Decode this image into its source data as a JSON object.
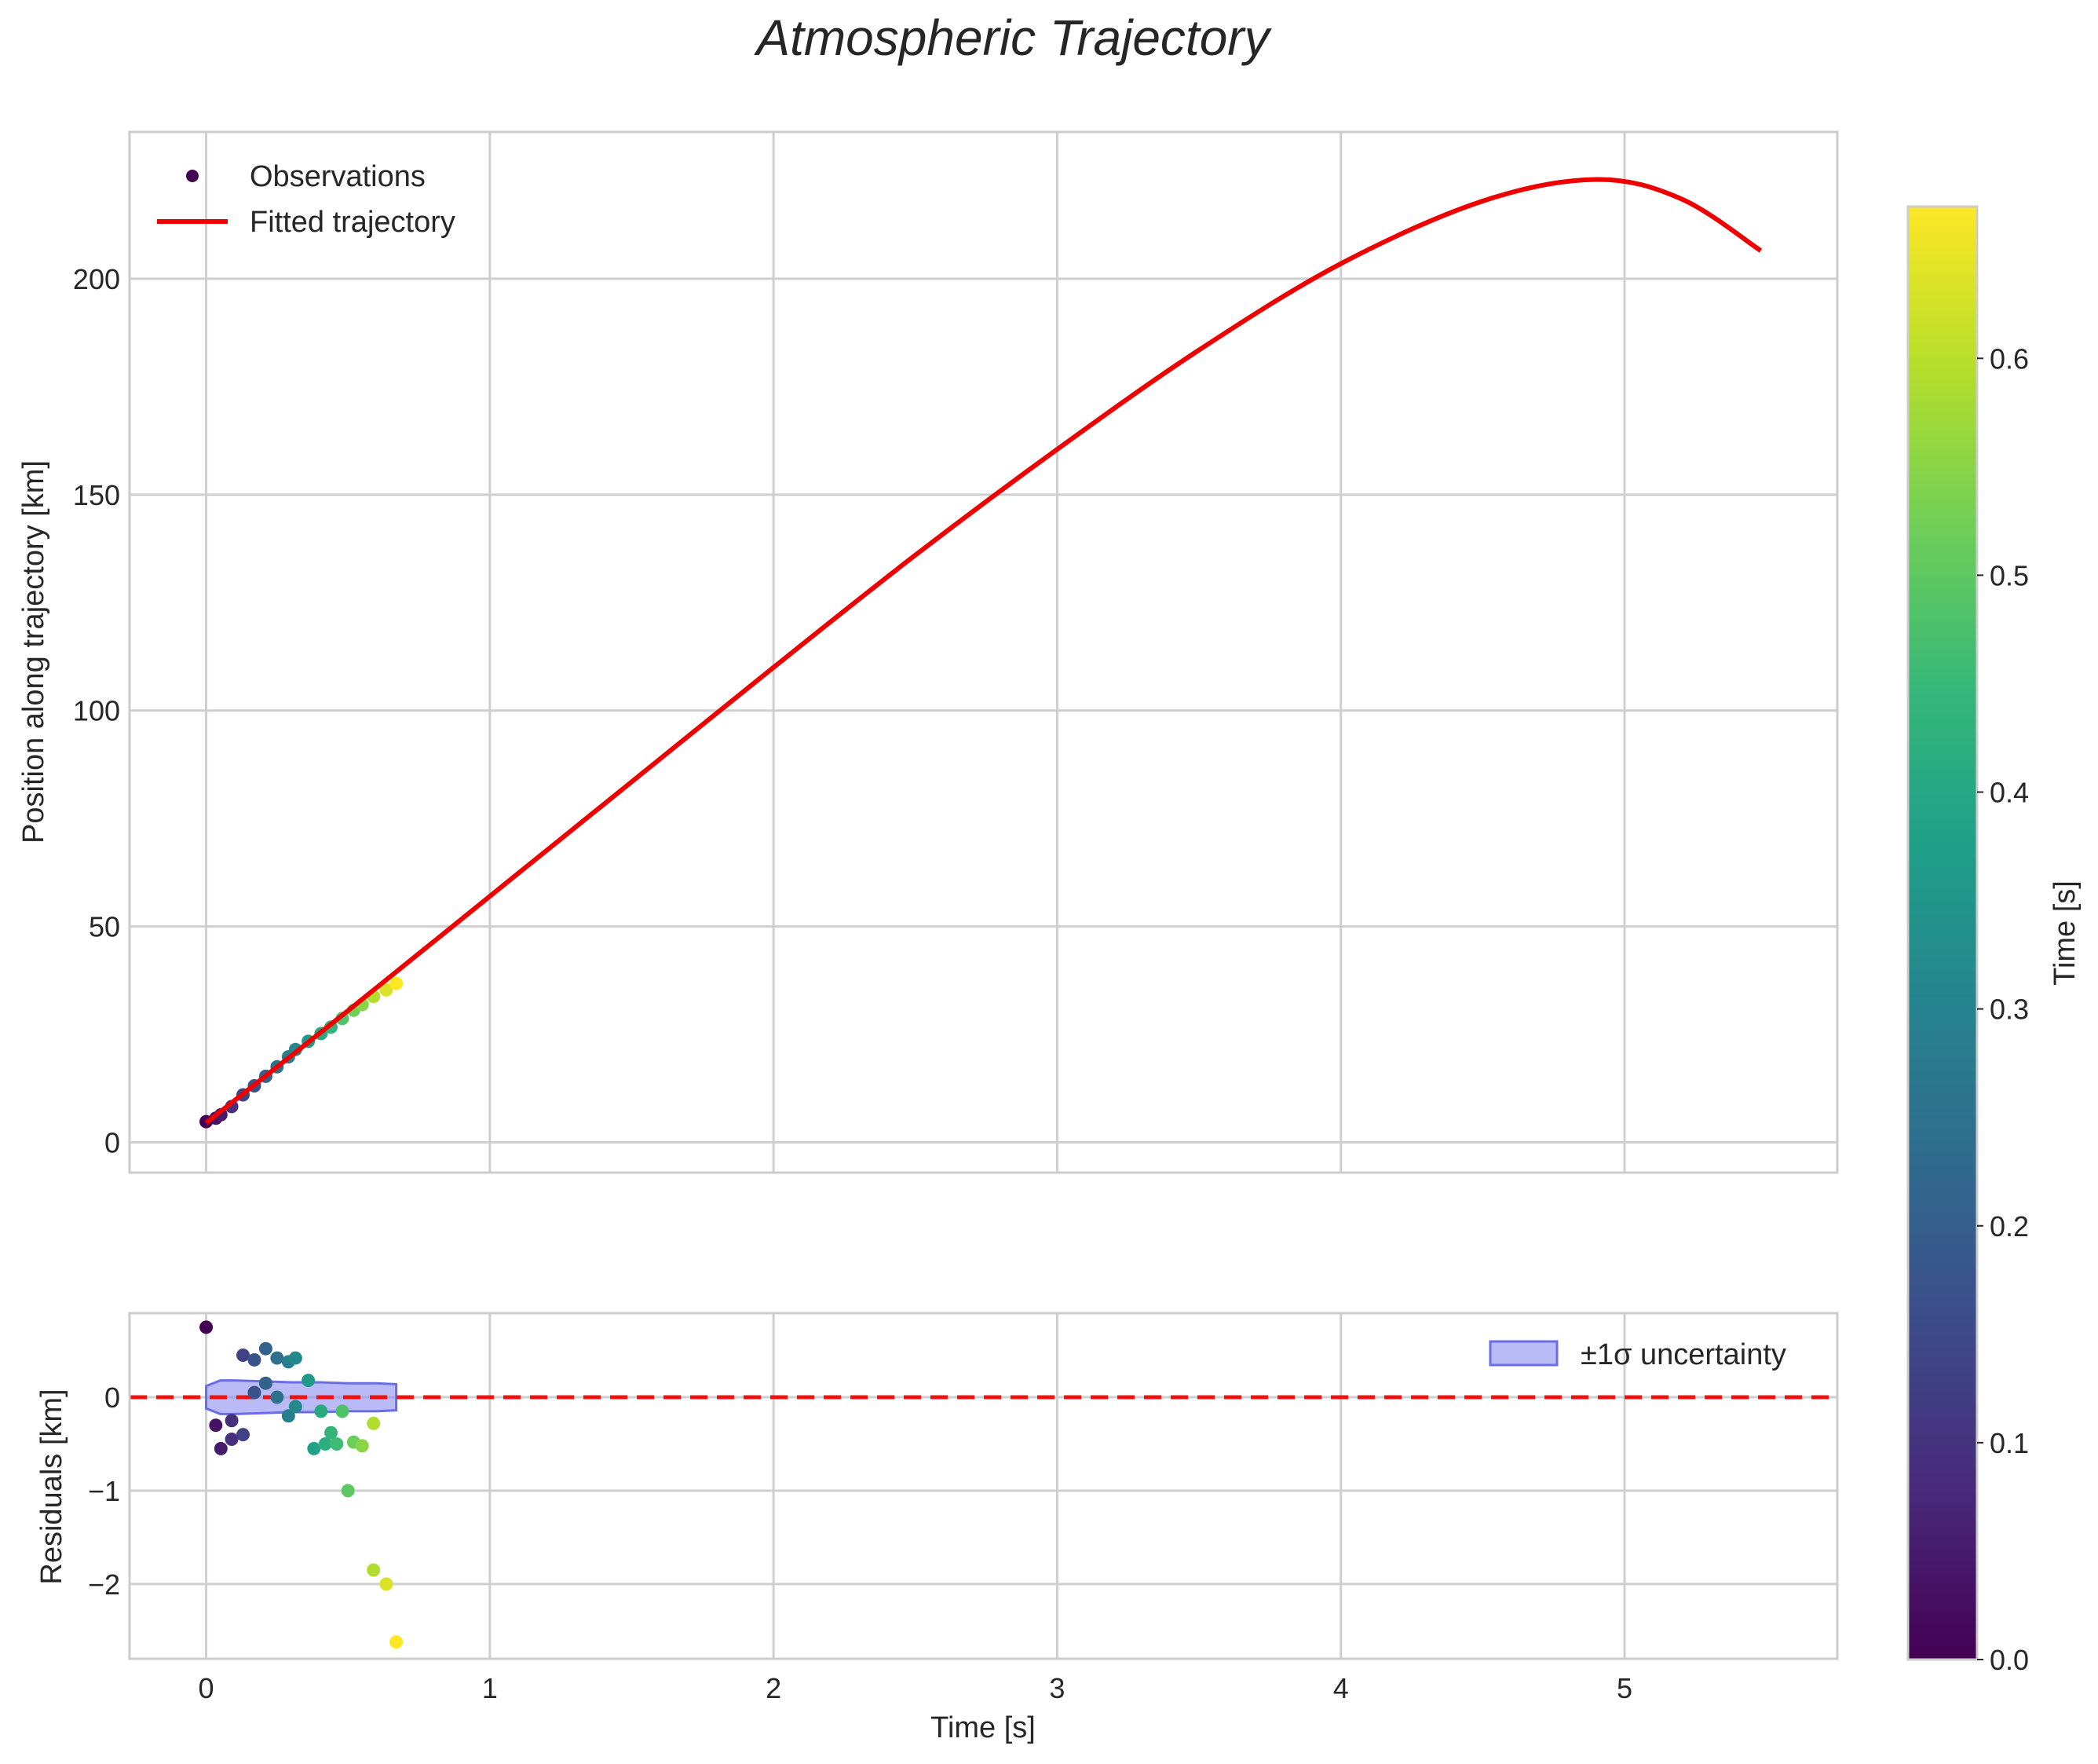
{
  "chart_data": {
    "type": "scatter",
    "title": "Atmospheric Trajectory",
    "colors": {
      "fit_line": "#ee0000",
      "zero_line": "#ee1111",
      "band_fill": "#8a8cf0",
      "band_edge": "#6a6ce8",
      "grid": "#cfcfcf",
      "spine": "#cccccc",
      "text": "#262626"
    },
    "colormap": [
      "#440154",
      "#482878",
      "#3e4989",
      "#31688e",
      "#26828e",
      "#1f9e89",
      "#35b779",
      "#6ece58",
      "#b5de2b",
      "#fde725"
    ],
    "top_panel": {
      "ylabel": "Position along trajectory [km]",
      "xlim": [
        -0.27,
        5.75
      ],
      "ylim": [
        -7,
        234
      ],
      "yticks": [
        0,
        50,
        100,
        150,
        200
      ],
      "ytick_labels": [
        "0",
        "50",
        "100",
        "150",
        "200"
      ],
      "xticks": [
        0,
        1,
        2,
        3,
        4,
        5
      ],
      "legend": {
        "position": "top-left",
        "scatter_label": "Observations",
        "line_label": "Fitted trajectory"
      },
      "observations": {
        "t": [
          0.0,
          0.034,
          0.052,
          0.09,
          0.13,
          0.17,
          0.21,
          0.25,
          0.29,
          0.315,
          0.36,
          0.405,
          0.44,
          0.48,
          0.52,
          0.55,
          0.59,
          0.635,
          0.67
        ],
        "position": [
          4.8,
          5.6,
          6.4,
          8.3,
          11.0,
          13.1,
          15.3,
          17.5,
          19.8,
          21.5,
          23.4,
          25.2,
          26.7,
          28.7,
          30.6,
          31.9,
          33.8,
          35.3,
          36.8
        ]
      },
      "fit": {
        "t": [
          0.0,
          0.5,
          1.0,
          1.5,
          2.0,
          2.5,
          3.0,
          3.5,
          4.0,
          4.5,
          4.9,
          5.2,
          5.48
        ],
        "position": [
          4.5,
          30.5,
          57.0,
          83.5,
          110.0,
          136.0,
          160.5,
          183.5,
          203.5,
          218.0,
          223.0,
          218.5,
          206.5
        ]
      }
    },
    "bottom_panel": {
      "ylabel": "Residuals [km]",
      "xlabel": "Time [s]",
      "xlim": [
        -0.27,
        5.75
      ],
      "ylim": [
        -2.8,
        0.9
      ],
      "yticks": [
        -2,
        -1,
        0
      ],
      "ytick_labels": [
        "−2",
        "−1",
        "0"
      ],
      "xticks": [
        0,
        1,
        2,
        3,
        4,
        5
      ],
      "xtick_labels": [
        "0",
        "1",
        "2",
        "3",
        "4",
        "5"
      ],
      "legend": {
        "position": "top-right",
        "band_label": "±1σ uncertainty"
      },
      "residuals": {
        "t": [
          0.0,
          0.034,
          0.052,
          0.09,
          0.09,
          0.13,
          0.13,
          0.17,
          0.17,
          0.21,
          0.21,
          0.25,
          0.25,
          0.29,
          0.29,
          0.315,
          0.315,
          0.36,
          0.38,
          0.405,
          0.42,
          0.44,
          0.46,
          0.48,
          0.5,
          0.52,
          0.55,
          0.59,
          0.59,
          0.635,
          0.67
        ],
        "residual": [
          0.75,
          -0.3,
          -0.55,
          -0.45,
          -0.25,
          0.45,
          -0.4,
          0.4,
          0.05,
          0.52,
          0.15,
          0.42,
          0.0,
          0.38,
          -0.2,
          0.42,
          -0.1,
          0.18,
          -0.55,
          -0.15,
          -0.5,
          -0.38,
          -0.5,
          -0.15,
          -1.0,
          -0.48,
          -0.52,
          -0.28,
          -1.85,
          -2.0,
          -2.62
        ]
      },
      "band": {
        "t": [
          0.0,
          0.05,
          0.1,
          0.2,
          0.3,
          0.4,
          0.5,
          0.6,
          0.67
        ],
        "upper": [
          0.12,
          0.18,
          0.18,
          0.17,
          0.16,
          0.16,
          0.15,
          0.15,
          0.14
        ],
        "lower": [
          -0.12,
          -0.18,
          -0.18,
          -0.17,
          -0.16,
          -0.16,
          -0.15,
          -0.15,
          -0.14
        ]
      }
    },
    "colorbar": {
      "label": "Time [s]",
      "range": [
        0.0,
        0.67
      ],
      "ticks": [
        0.0,
        0.1,
        0.2,
        0.3,
        0.4,
        0.5,
        0.6
      ],
      "tick_labels": [
        "0.0",
        "0.1",
        "0.2",
        "0.3",
        "0.4",
        "0.5",
        "0.6"
      ]
    }
  }
}
